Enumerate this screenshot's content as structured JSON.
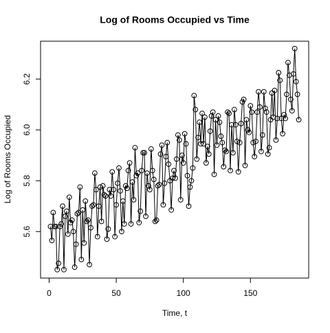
{
  "chart_data": {
    "type": "line",
    "title": "Log of Rooms Occupied vs Time",
    "x_label": "Time, t",
    "y_label": "Log of Rooms Occupied",
    "x": [
      1,
      2,
      3,
      4,
      5,
      6,
      7,
      8,
      9,
      10,
      11,
      12,
      13,
      14,
      15,
      16,
      17,
      18,
      19,
      20,
      21,
      22,
      23,
      24,
      25,
      26,
      27,
      28,
      29,
      30,
      31,
      32,
      33,
      34,
      35,
      36,
      37,
      38,
      39,
      40,
      41,
      42,
      43,
      44,
      45,
      46,
      47,
      48,
      49,
      50,
      51,
      52,
      53,
      54,
      55,
      56,
      57,
      58,
      59,
      60,
      61,
      62,
      63,
      64,
      65,
      66,
      67,
      68,
      69,
      70,
      71,
      72,
      73,
      74,
      75,
      76,
      77,
      78,
      79,
      80,
      81,
      82,
      83,
      84,
      85,
      86,
      87,
      88,
      89,
      90,
      91,
      92,
      93,
      94,
      95,
      96,
      97,
      98,
      99,
      100,
      101,
      102,
      103,
      104,
      105,
      106,
      107,
      108,
      109,
      110,
      111,
      112,
      113,
      114,
      115,
      116,
      117,
      118,
      119,
      120,
      121,
      122,
      123,
      124,
      125,
      126,
      127,
      128,
      129,
      130,
      131,
      132,
      133,
      134,
      135,
      136,
      137,
      138,
      139,
      140,
      141,
      142,
      143,
      144,
      145,
      146,
      147,
      148,
      149,
      150,
      151,
      152,
      153,
      154,
      155,
      156,
      157,
      158,
      159,
      160,
      161,
      162,
      163,
      164,
      165,
      166,
      167,
      168,
      169,
      170,
      171,
      172,
      173,
      174,
      175,
      176,
      177,
      178,
      179,
      180,
      181,
      182,
      183,
      184,
      185,
      186
    ],
    "series": [
      {
        "color": "#000000",
        "values": [
          5.62,
          5.565,
          5.675,
          5.62,
          5.62,
          5.45,
          5.475,
          5.62,
          5.63,
          5.7,
          5.45,
          5.66,
          5.68,
          5.59,
          5.735,
          5.635,
          5.645,
          5.6,
          5.46,
          5.55,
          5.67,
          5.675,
          5.775,
          5.49,
          5.685,
          5.555,
          5.72,
          5.64,
          5.645,
          5.47,
          5.615,
          5.7,
          5.705,
          5.83,
          5.765,
          5.58,
          5.7,
          5.775,
          5.64,
          5.78,
          5.745,
          5.74,
          5.57,
          5.61,
          5.765,
          5.74,
          5.835,
          5.765,
          5.58,
          5.705,
          5.79,
          5.85,
          5.76,
          5.6,
          5.72,
          5.63,
          5.78,
          5.77,
          5.84,
          5.87,
          5.63,
          5.795,
          5.725,
          5.93,
          5.82,
          5.83,
          5.635,
          5.68,
          5.84,
          5.91,
          5.91,
          5.66,
          5.83,
          5.78,
          5.765,
          5.925,
          5.84,
          5.805,
          5.64,
          5.645,
          5.78,
          5.785,
          5.905,
          5.94,
          5.705,
          5.79,
          5.895,
          5.95,
          5.865,
          5.8,
          5.685,
          5.81,
          5.84,
          5.81,
          5.885,
          5.98,
          5.96,
          5.725,
          5.9,
          5.87,
          5.985,
          5.945,
          5.82,
          5.7,
          5.775,
          5.8,
          5.85,
          6.135,
          6.08,
          5.885,
          5.97,
          6.03,
          5.945,
          6.065,
          5.945,
          6.05,
          5.87,
          5.935,
          5.905,
          5.995,
          6.055,
          6.07,
          5.825,
          6.04,
          5.94,
          6.055,
          6.03,
          5.975,
          5.95,
          5.855,
          5.92,
          5.915,
          6.07,
          6.065,
          5.84,
          6.02,
          5.91,
          6.08,
          6.02,
          5.955,
          5.835,
          5.95,
          6.025,
          6.11,
          6.12,
          5.86,
          6.04,
          6.0,
          5.99,
          6.095,
          6.07,
          5.95,
          5.895,
          5.955,
          6.07,
          6.15,
          6.09,
          5.915,
          5.98,
          6.15,
          6.085,
          6.07,
          5.905,
          5.93,
          6.04,
          6.145,
          6.05,
          6.155,
          5.96,
          6.045,
          6.225,
          6.195,
          6.045,
          5.985,
          6.06,
          6.045,
          6.14,
          6.265,
          6.215,
          6.12,
          6.075,
          6.22,
          6.32,
          6.19,
          6.14,
          6.04
        ]
      }
    ],
    "xlim": [
      -6.4,
      193.4
    ],
    "xticks": [
      0,
      50,
      100,
      150
    ],
    "ylim": [
      5.417,
      6.349
    ],
    "yticks": [
      5.6,
      5.8,
      {
        "value": 6,
        "label": "6.0"
      },
      6.2
    ],
    "markers": true
  }
}
